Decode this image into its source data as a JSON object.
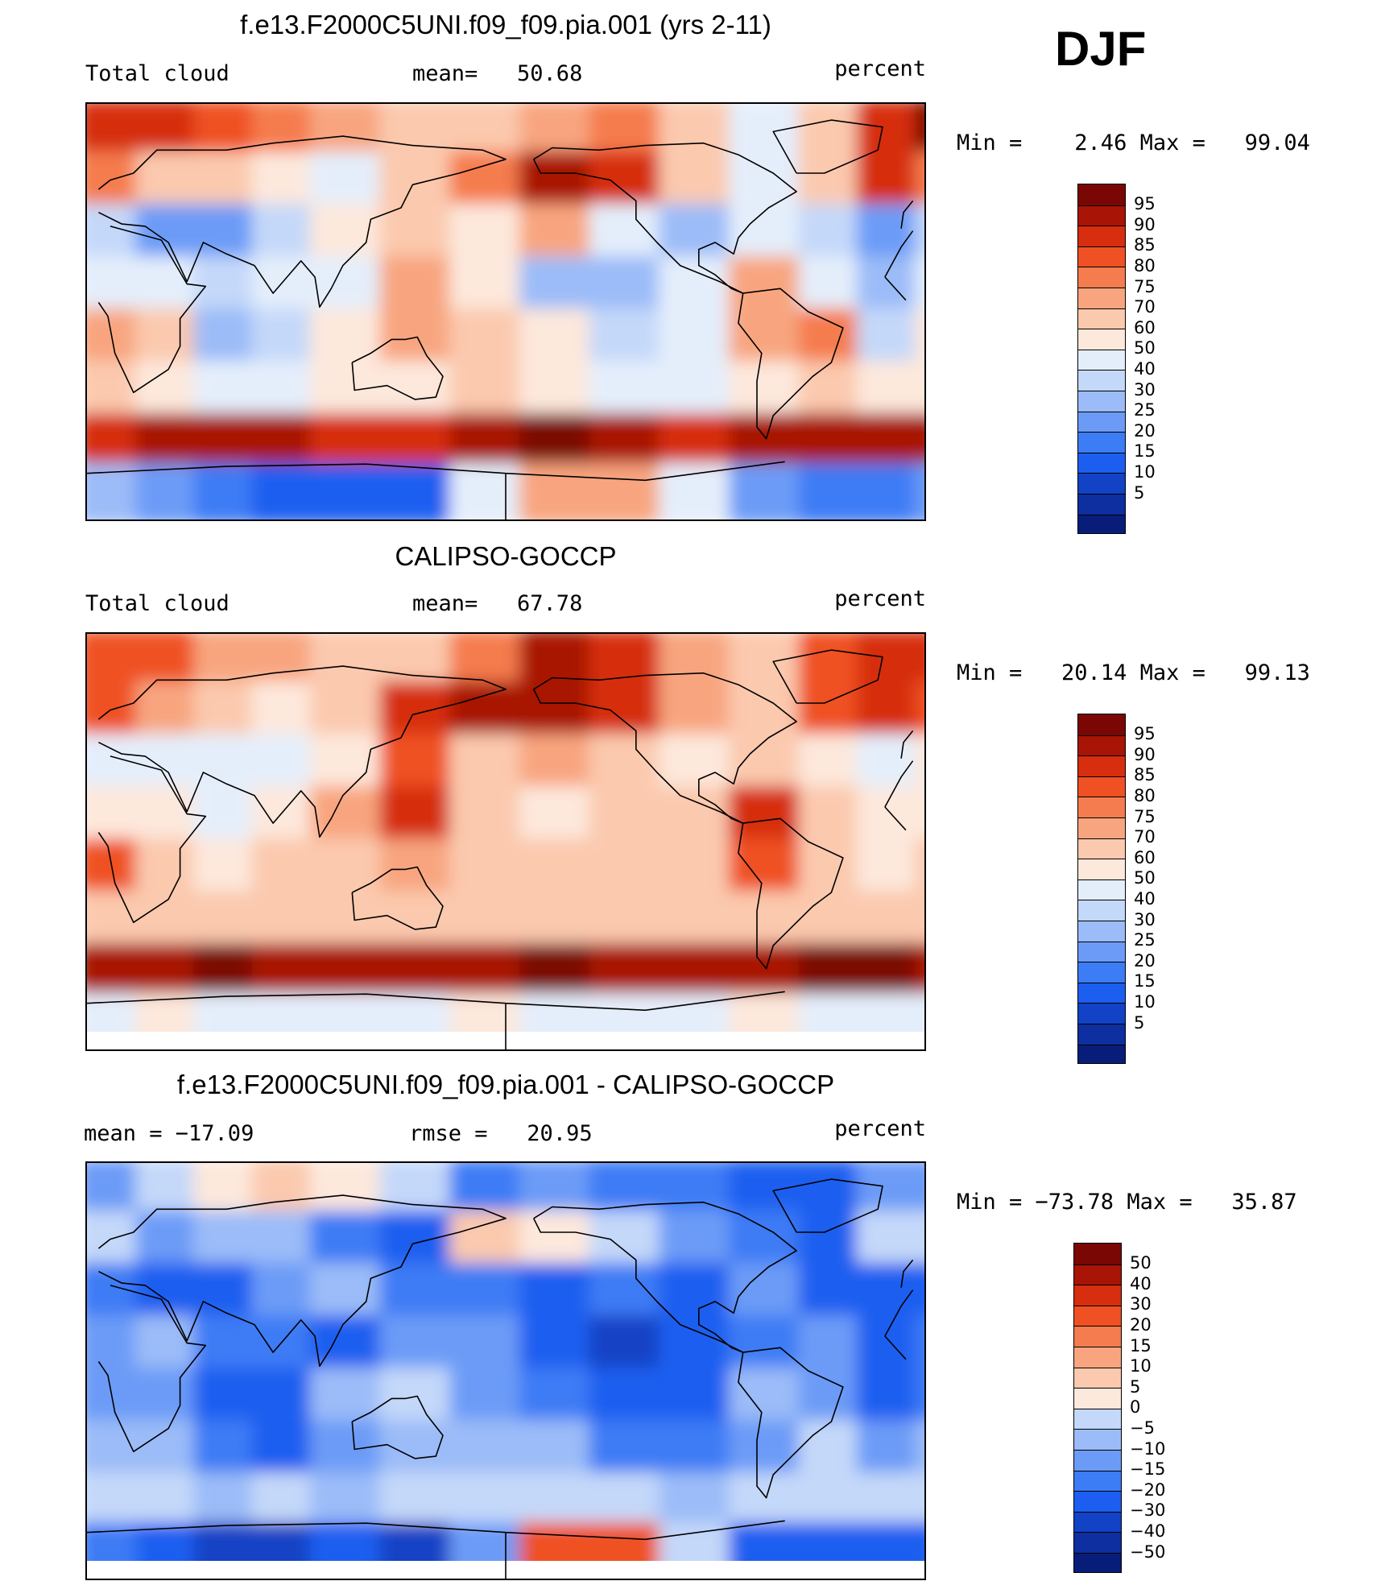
{
  "season": "DJF",
  "colors": {
    "abs": [
      "#081d7a",
      "#0d2fa0",
      "#1242c5",
      "#1c5ef0",
      "#3c7cf5",
      "#6c9bf7",
      "#9bbcf8",
      "#c4d8f9",
      "#e4eefb",
      "#fde8dc",
      "#fbc9ae",
      "#f8a57f",
      "#f57c4e",
      "#ef5124",
      "#d62e0e",
      "#a81406",
      "#7a0703"
    ],
    "diff": [
      "#081d7a",
      "#0d2fa0",
      "#1242c5",
      "#1c5ef0",
      "#3c7cf5",
      "#6c9bf7",
      "#9bbcf8",
      "#c4d8f9",
      "#fde8dc",
      "#fbc9ae",
      "#f8a57f",
      "#f57c4e",
      "#ef5124",
      "#d62e0e",
      "#a81406",
      "#7a0703"
    ]
  },
  "panels": [
    {
      "id": "model",
      "title": "f.e13.F2000C5UNI.f09_f09.pia.001 (yrs 2-11)",
      "left_label": "Total cloud",
      "mid_label": "mean=   50.68",
      "right_label": "percent",
      "minmax": "Min =    2.46 Max =   99.04",
      "scale": "abs"
    },
    {
      "id": "obs",
      "title": "CALIPSO-GOCCP",
      "left_label": "Total cloud",
      "mid_label": "mean=   67.78",
      "right_label": "percent",
      "minmax": "Min =   20.14 Max =   99.13",
      "scale": "abs"
    },
    {
      "id": "diff",
      "title": "f.e13.F2000C5UNI.f09_f09.pia.001 - CALIPSO-GOCCP",
      "left_label": "mean = −17.09",
      "mid_label": "rmse =   20.95",
      "right_label": "percent",
      "minmax": "Min = −73.78 Max =   35.87",
      "scale": "diff"
    }
  ],
  "chart_data": [
    {
      "type": "heatmap",
      "title": "f.e13.F2000C5UNI.f09_f09.pia.001 (yrs 2-11)",
      "variable": "Total cloud",
      "units": "percent",
      "mean": 50.68,
      "min": 2.46,
      "max": 99.04,
      "contour_levels": [
        5,
        10,
        15,
        20,
        25,
        30,
        40,
        50,
        60,
        70,
        75,
        80,
        85,
        90,
        95
      ],
      "colorbar_labels": [
        "95",
        "90",
        "85",
        "80",
        "75",
        "70",
        "60",
        "50",
        "40",
        "30",
        "25",
        "20",
        "15",
        "10",
        "5"
      ]
    },
    {
      "type": "heatmap",
      "title": "CALIPSO-GOCCP",
      "variable": "Total cloud",
      "units": "percent",
      "mean": 67.78,
      "min": 20.14,
      "max": 99.13,
      "contour_levels": [
        5,
        10,
        15,
        20,
        25,
        30,
        40,
        50,
        60,
        70,
        75,
        80,
        85,
        90,
        95
      ],
      "colorbar_labels": [
        "95",
        "90",
        "85",
        "80",
        "75",
        "70",
        "60",
        "50",
        "40",
        "30",
        "25",
        "20",
        "15",
        "10",
        "5"
      ]
    },
    {
      "type": "heatmap",
      "title": "f.e13.F2000C5UNI.f09_f09.pia.001 - CALIPSO-GOCCP",
      "units": "percent",
      "mean": -17.09,
      "rmse": 20.95,
      "min": -73.78,
      "max": 35.87,
      "contour_levels": [
        -50,
        -40,
        -30,
        -20,
        -15,
        -10,
        -5,
        0,
        5,
        10,
        15,
        20,
        30,
        40,
        50
      ],
      "colorbar_labels": [
        "50",
        "40",
        "30",
        "20",
        "15",
        "10",
        "5",
        "0",
        "−5",
        "−10",
        "−15",
        "−20",
        "−30",
        "−40",
        "−50"
      ]
    }
  ]
}
